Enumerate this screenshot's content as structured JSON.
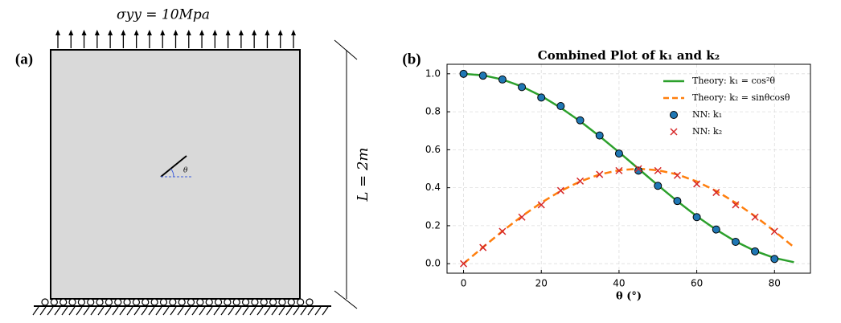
{
  "diagram": {
    "panel_label": "(a)",
    "load_label": "σyy = 10Mpa",
    "length_label": "L = 2m",
    "angle_label": "θ"
  },
  "chart_data": {
    "type": "line",
    "panel_label": "(b)",
    "title": "Combined Plot of k₁ and k₂",
    "x_label": "θ (°)",
    "xlim": [
      -4.25,
      89.25
    ],
    "ylim": [
      -0.05,
      1.05
    ],
    "xticks": [
      0,
      20,
      40,
      60,
      80
    ],
    "yticks": [
      {
        "value": 0,
        "label": "0.0"
      },
      0.2,
      0.4,
      0.6,
      0.8,
      {
        "value": 1,
        "label": "1.0"
      }
    ],
    "grid": true,
    "legend": "upper right",
    "series": [
      {
        "name": "Theory: k₁ = cos²θ",
        "color": "#2ca02c",
        "linestyle": "solid",
        "x": [
          0,
          5,
          10,
          15,
          20,
          25,
          30,
          35,
          40,
          45,
          50,
          55,
          60,
          65,
          70,
          75,
          80,
          85
        ],
        "values": [
          1,
          0.992,
          0.97,
          0.933,
          0.883,
          0.821,
          0.75,
          0.671,
          0.587,
          0.5,
          0.413,
          0.329,
          0.25,
          0.179,
          0.117,
          0.067,
          0.03,
          0.008
        ]
      },
      {
        "name": "Theory: k₂ = sinθcosθ",
        "color": "#ff7f0e",
        "linestyle": "dashed",
        "x": [
          0,
          5,
          10,
          15,
          20,
          25,
          30,
          35,
          40,
          45,
          50,
          55,
          60,
          65,
          70,
          75,
          80,
          85
        ],
        "values": [
          0,
          0.087,
          0.171,
          0.25,
          0.321,
          0.383,
          0.433,
          0.47,
          0.492,
          0.5,
          0.492,
          0.47,
          0.433,
          0.383,
          0.321,
          0.25,
          0.171,
          0.087
        ]
      },
      {
        "name": "NN: k₁",
        "color": "#1f77b4",
        "marker": "o",
        "x": [
          0,
          5,
          10,
          15,
          20,
          25,
          30,
          35,
          40,
          45,
          50,
          55,
          60,
          65,
          70,
          75,
          80
        ],
        "values": [
          1.0,
          0.99,
          0.97,
          0.93,
          0.875,
          0.83,
          0.755,
          0.675,
          0.58,
          0.49,
          0.41,
          0.33,
          0.245,
          0.18,
          0.115,
          0.065,
          0.025
        ]
      },
      {
        "name": "NN: k₂",
        "color": "#d62728",
        "marker": "x",
        "x": [
          0,
          5,
          10,
          15,
          20,
          25,
          30,
          35,
          40,
          45,
          50,
          55,
          60,
          65,
          70,
          75,
          80
        ],
        "values": [
          0.0,
          0.085,
          0.17,
          0.245,
          0.31,
          0.385,
          0.435,
          0.47,
          0.49,
          0.5,
          0.49,
          0.465,
          0.42,
          0.375,
          0.31,
          0.245,
          0.17
        ]
      }
    ]
  }
}
